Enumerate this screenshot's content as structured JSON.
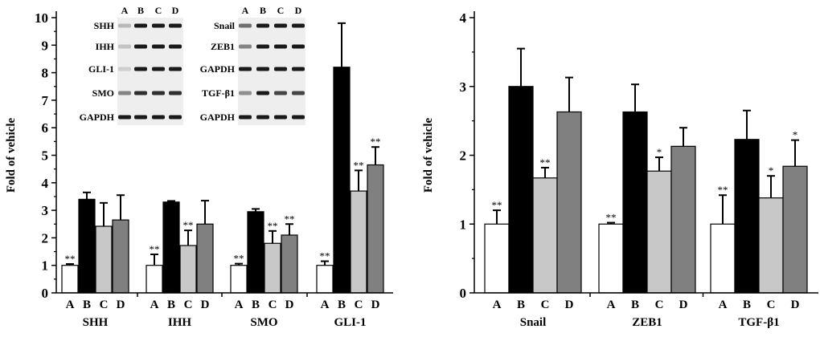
{
  "chart_data": [
    {
      "type": "bar",
      "ylabel": "Fold of vehicle",
      "ylim": [
        0,
        10
      ],
      "yticks": [
        "0",
        "1",
        "2",
        "3",
        "4",
        "5",
        "6",
        "7",
        "8",
        "9",
        "10"
      ],
      "series_labels": [
        "A",
        "B",
        "C",
        "D"
      ],
      "series_colors": [
        "#ffffff",
        "#000000",
        "#c8c8c8",
        "#808080"
      ],
      "groups": [
        {
          "name": "SHH",
          "values": [
            1.0,
            3.4,
            2.42,
            2.65
          ],
          "errors": [
            0.05,
            0.25,
            0.85,
            0.9
          ],
          "stars": [
            "**",
            "",
            "",
            ""
          ]
        },
        {
          "name": "IHH",
          "values": [
            1.0,
            3.3,
            1.72,
            2.5
          ],
          "errors": [
            0.4,
            0.04,
            0.55,
            0.85
          ],
          "stars": [
            "**",
            "",
            "**",
            ""
          ]
        },
        {
          "name": "SMO",
          "values": [
            1.0,
            2.95,
            1.8,
            2.1
          ],
          "errors": [
            0.06,
            0.1,
            0.45,
            0.4
          ],
          "stars": [
            "**",
            "",
            "**",
            "**"
          ]
        },
        {
          "name": "GLI-1",
          "values": [
            1.0,
            8.2,
            3.7,
            4.65
          ],
          "errors": [
            0.15,
            1.6,
            0.75,
            0.65
          ],
          "stars": [
            "**",
            "",
            "**",
            "**"
          ]
        }
      ],
      "inset": {
        "lanes": [
          "A",
          "B",
          "C",
          "D"
        ],
        "left_labels": [
          "SHH",
          "IHH",
          "GLI-1",
          "SMO",
          "GAPDH"
        ],
        "right_labels": [
          "Snail",
          "ZEB1",
          "GAPDH",
          "TGF-β1",
          "GAPDH"
        ]
      }
    },
    {
      "type": "bar",
      "ylabel": "Fold of vehicle",
      "ylim": [
        0,
        4
      ],
      "yticks": [
        "0",
        "1",
        "2",
        "3",
        "4"
      ],
      "series_labels": [
        "A",
        "B",
        "C",
        "D"
      ],
      "series_colors": [
        "#ffffff",
        "#000000",
        "#c8c8c8",
        "#808080"
      ],
      "groups": [
        {
          "name": "Snail",
          "values": [
            1.0,
            3.0,
            1.67,
            2.63
          ],
          "errors": [
            0.2,
            0.55,
            0.15,
            0.5
          ],
          "stars": [
            "**",
            "",
            "**",
            ""
          ]
        },
        {
          "name": "ZEB1",
          "values": [
            1.0,
            2.63,
            1.77,
            2.13
          ],
          "errors": [
            0.02,
            0.4,
            0.2,
            0.27
          ],
          "stars": [
            "**",
            "",
            "*",
            ""
          ]
        },
        {
          "name": "TGF-β1",
          "values": [
            1.0,
            2.23,
            1.38,
            1.84
          ],
          "errors": [
            0.42,
            0.42,
            0.32,
            0.38
          ],
          "stars": [
            "**",
            "",
            "*",
            "*"
          ]
        }
      ]
    }
  ]
}
